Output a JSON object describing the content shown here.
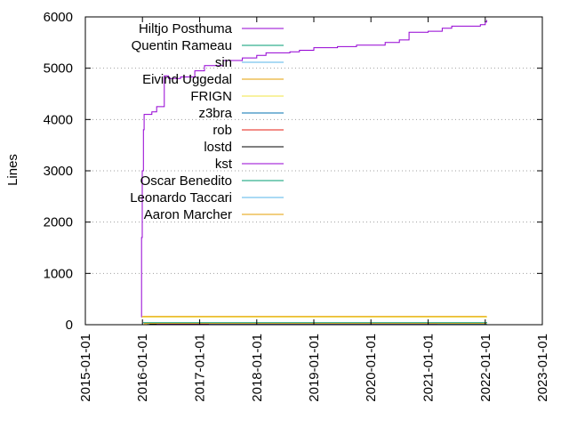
{
  "chart_data": {
    "type": "line",
    "title": "",
    "xlabel": "",
    "ylabel": "Lines",
    "xlim": [
      "2015-01-01",
      "2023-01-01"
    ],
    "ylim": [
      0,
      6000
    ],
    "x_ticks": [
      "2015-01-01",
      "2016-01-01",
      "2017-01-01",
      "2018-01-01",
      "2019-01-01",
      "2020-01-01",
      "2021-01-01",
      "2022-01-01",
      "2023-01-01"
    ],
    "y_ticks": [
      0,
      1000,
      2000,
      3000,
      4000,
      5000,
      6000
    ],
    "grid": "horizontal dotted",
    "legend_position": "top-left",
    "series": [
      {
        "name": "Hiltjo Posthuma",
        "color": "#9400d3",
        "points": [
          [
            "2015-12-24",
            150
          ],
          [
            "2015-12-26",
            1700
          ],
          [
            "2015-12-31",
            3000
          ],
          [
            "2016-01-07",
            3800
          ],
          [
            "2016-01-12",
            4100
          ],
          [
            "2016-03-01",
            4150
          ],
          [
            "2016-04-01",
            4250
          ],
          [
            "2016-05-20",
            4850
          ],
          [
            "2016-06-15",
            4800
          ],
          [
            "2016-09-01",
            4830
          ],
          [
            "2016-12-01",
            4950
          ],
          [
            "2017-02-01",
            5050
          ],
          [
            "2017-06-01",
            5150
          ],
          [
            "2017-10-01",
            5200
          ],
          [
            "2018-01-01",
            5250
          ],
          [
            "2018-03-01",
            5300
          ],
          [
            "2018-08-01",
            5320
          ],
          [
            "2018-10-01",
            5350
          ],
          [
            "2019-01-01",
            5400
          ],
          [
            "2019-06-01",
            5420
          ],
          [
            "2019-10-01",
            5450
          ],
          [
            "2020-04-01",
            5500
          ],
          [
            "2020-07-01",
            5550
          ],
          [
            "2020-09-01",
            5700
          ],
          [
            "2021-01-01",
            5720
          ],
          [
            "2021-04-01",
            5780
          ],
          [
            "2021-06-01",
            5820
          ],
          [
            "2021-12-01",
            5850
          ],
          [
            "2022-01-01",
            5900
          ],
          [
            "2022-01-10",
            5940
          ]
        ]
      },
      {
        "name": "Quentin Rameau",
        "color": "#009e73",
        "points": [
          [
            "2016-01-05",
            40
          ],
          [
            "2022-01-10",
            50
          ]
        ]
      },
      {
        "name": "sin",
        "color": "#56b4e9",
        "points": [
          [
            "2016-02-01",
            10
          ],
          [
            "2022-01-10",
            15
          ]
        ]
      },
      {
        "name": "Eivind Uggedal",
        "color": "#e69f00",
        "points": [
          [
            "2016-01-10",
            20
          ],
          [
            "2022-01-10",
            20
          ]
        ]
      },
      {
        "name": "FRIGN",
        "color": "#f0e442",
        "points": [
          [
            "2015-12-28",
            150
          ],
          [
            "2022-01-10",
            160
          ]
        ]
      },
      {
        "name": "z3bra",
        "color": "#0072b2",
        "points": [
          [
            "2016-02-01",
            5
          ],
          [
            "2022-01-10",
            5
          ]
        ]
      },
      {
        "name": "rob",
        "color": "#e51e10",
        "points": [
          [
            "2016-03-01",
            5
          ],
          [
            "2022-01-10",
            5
          ]
        ]
      },
      {
        "name": "lostd",
        "color": "#000000",
        "points": [
          [
            "2016-02-15",
            8
          ],
          [
            "2022-01-10",
            8
          ]
        ]
      },
      {
        "name": "kst",
        "color": "#9400d3",
        "points": [
          [
            "2016-04-01",
            4
          ],
          [
            "2022-01-10",
            4
          ]
        ]
      },
      {
        "name": "Oscar Benedito",
        "color": "#009e73",
        "points": [
          [
            "2021-03-01",
            3
          ],
          [
            "2022-01-10",
            3
          ]
        ]
      },
      {
        "name": "Leonardo Taccari",
        "color": "#56b4e9",
        "points": [
          [
            "2017-03-01",
            3
          ],
          [
            "2022-01-10",
            3
          ]
        ]
      },
      {
        "name": "Aaron Marcher",
        "color": "#e69f00",
        "points": [
          [
            "2016-01-01",
            160
          ],
          [
            "2022-01-10",
            160
          ]
        ]
      }
    ]
  }
}
